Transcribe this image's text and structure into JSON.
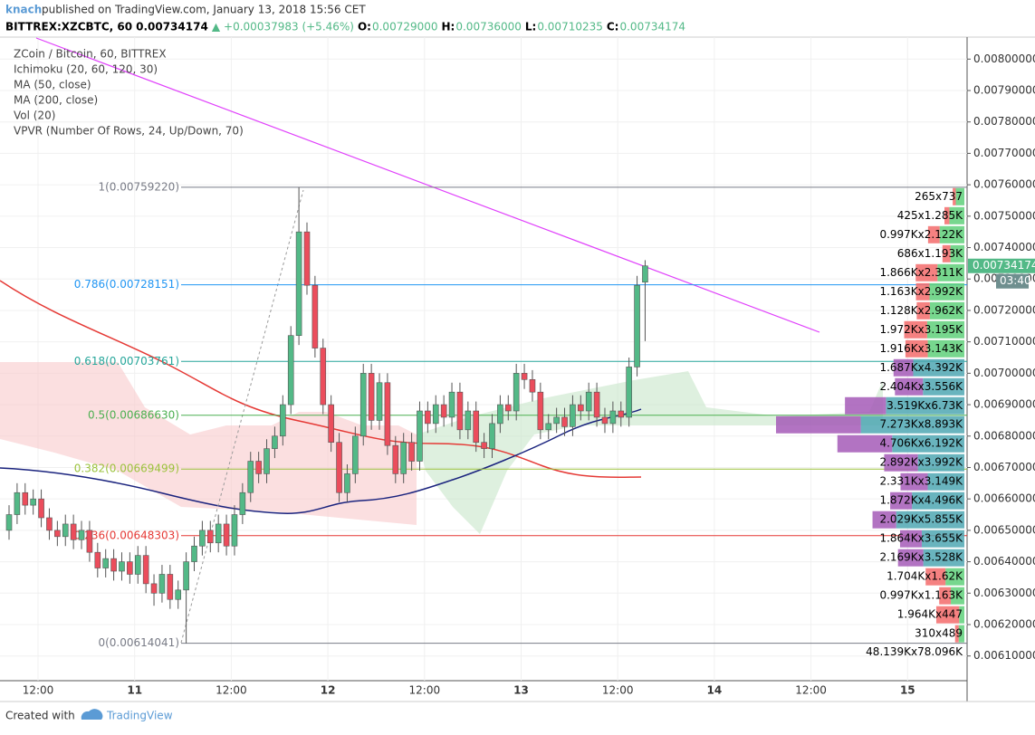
{
  "header": {
    "author": "knach",
    "published": "published on TradingView.com, January 13, 2018 15:56 CET",
    "symbol": "BITTREX:XZCBTC, 60",
    "last": "0.00734174",
    "arrow": "▲",
    "change": "+0.00037983 (+5.46%)",
    "o_label": "O:",
    "o": "0.00729000",
    "h_label": "H:",
    "h": "0.00736000",
    "l_label": "L:",
    "l": "0.00710235",
    "c_label": "C:",
    "c": "0.00734174"
  },
  "legend": [
    "ZCoin / Bitcoin, 60, BITTREX",
    "Ichimoku (20, 60, 120, 30)",
    "MA (50, close)",
    "MA (200, close)",
    "Vol (20)",
    "VPVR (Number Of Rows, 24, Up/Down, 70)"
  ],
  "countdown": "03:40",
  "footer": {
    "created": "Created with",
    "brand": "TradingView"
  },
  "chart_data": {
    "type": "candlestick",
    "up_color": "#53b987",
    "down_color": "#eb4d5c",
    "ylim": [
      0.00603,
      0.00807
    ],
    "yticks": [
      {
        "value": 0.0061,
        "label": "0.00610000"
      },
      {
        "value": 0.0062,
        "label": "0.00620000"
      },
      {
        "value": 0.0063,
        "label": "0.00630000"
      },
      {
        "value": 0.0064,
        "label": "0.00640000"
      },
      {
        "value": 0.0065,
        "label": "0.00650000"
      },
      {
        "value": 0.0066,
        "label": "0.00660000"
      },
      {
        "value": 0.0067,
        "label": "0.00670000"
      },
      {
        "value": 0.0068,
        "label": "0.00680000"
      },
      {
        "value": 0.0069,
        "label": "0.00690000"
      },
      {
        "value": 0.007,
        "label": "0.00700000"
      },
      {
        "value": 0.0071,
        "label": "0.00710000"
      },
      {
        "value": 0.0072,
        "label": "0.00720000"
      },
      {
        "value": 0.0073,
        "label": "0.00730000"
      },
      {
        "value": 0.0074,
        "label": "0.00740000"
      },
      {
        "value": 0.0075,
        "label": "0.00750000"
      },
      {
        "value": 0.0076,
        "label": "0.00760000"
      },
      {
        "value": 0.0077,
        "label": "0.00770000"
      },
      {
        "value": 0.0078,
        "label": "0.00780000"
      },
      {
        "value": 0.0079,
        "label": "0.00790000"
      },
      {
        "value": 0.008,
        "label": "0.00800000"
      }
    ],
    "xticks": [
      "12:00",
      "11",
      "12:00",
      "12",
      "12:00",
      "13",
      "12:00",
      "14",
      "12:00",
      "15"
    ],
    "last_price": {
      "value": 0.00734174,
      "label": "0.00734174",
      "color": "#53b987"
    },
    "open": [
      0.0065,
      0.00655,
      0.00662,
      0.00658,
      0.0066,
      0.00654,
      0.0065,
      0.00648,
      0.00652,
      0.00647,
      0.0065,
      0.00643,
      0.00638,
      0.00641,
      0.00637,
      0.0064,
      0.00636,
      0.00642,
      0.00633,
      0.0063,
      0.00636,
      0.00628,
      0.00631,
      0.0064,
      0.00645,
      0.0065,
      0.00646,
      0.00652,
      0.00645,
      0.00655,
      0.00662,
      0.00672,
      0.00668,
      0.00676,
      0.0068,
      0.0069,
      0.00712,
      0.00745,
      0.00728,
      0.00708,
      0.0069,
      0.00678,
      0.00662,
      0.00668,
      0.0068,
      0.007,
      0.00685,
      0.00697,
      0.00677,
      0.00668,
      0.00678,
      0.00672,
      0.00688,
      0.00684,
      0.0069,
      0.00686,
      0.00694,
      0.00682,
      0.00688,
      0.00678,
      0.00676,
      0.00684,
      0.0069,
      0.00688,
      0.007,
      0.00698,
      0.00694,
      0.00682,
      0.00684,
      0.00686,
      0.00683,
      0.0069,
      0.00688,
      0.00694,
      0.00686,
      0.00684,
      0.00688,
      0.00686,
      0.00702,
      0.00729
    ],
    "high": [
      0.00658,
      0.00665,
      0.00665,
      0.00663,
      0.00663,
      0.00657,
      0.00653,
      0.00655,
      0.00655,
      0.00653,
      0.00653,
      0.00646,
      0.00644,
      0.00644,
      0.00643,
      0.00643,
      0.00645,
      0.00645,
      0.00636,
      0.00639,
      0.00639,
      0.00634,
      0.00643,
      0.00648,
      0.00653,
      0.00653,
      0.00655,
      0.00655,
      0.00658,
      0.00665,
      0.00675,
      0.00675,
      0.00679,
      0.00683,
      0.00693,
      0.00715,
      0.0075922,
      0.00748,
      0.00731,
      0.00711,
      0.00693,
      0.00681,
      0.00671,
      0.00683,
      0.00703,
      0.00703,
      0.007,
      0.007,
      0.0068,
      0.00681,
      0.00681,
      0.00691,
      0.00691,
      0.00693,
      0.00693,
      0.00697,
      0.00697,
      0.00691,
      0.00691,
      0.00681,
      0.00687,
      0.00693,
      0.00693,
      0.00703,
      0.00703,
      0.00701,
      0.00697,
      0.00687,
      0.00689,
      0.00689,
      0.00693,
      0.00693,
      0.00697,
      0.00697,
      0.00689,
      0.00691,
      0.00691,
      0.00705,
      0.00731,
      0.00736
    ],
    "low": [
      0.00647,
      0.00652,
      0.00655,
      0.00655,
      0.00651,
      0.00647,
      0.00645,
      0.00645,
      0.00644,
      0.00644,
      0.0064,
      0.00635,
      0.00635,
      0.00634,
      0.00634,
      0.00633,
      0.00633,
      0.0063,
      0.00626,
      0.00627,
      0.00625,
      0.00625,
      0.00614041,
      0.00637,
      0.00642,
      0.00643,
      0.00643,
      0.00642,
      0.00642,
      0.00652,
      0.00659,
      0.00665,
      0.00665,
      0.00673,
      0.00677,
      0.00687,
      0.00709,
      0.00725,
      0.00705,
      0.00687,
      0.00675,
      0.00659,
      0.00659,
      0.00665,
      0.00677,
      0.00682,
      0.00682,
      0.00674,
      0.00665,
      0.00665,
      0.00669,
      0.00669,
      0.00681,
      0.00681,
      0.00683,
      0.00683,
      0.00679,
      0.00679,
      0.00675,
      0.00673,
      0.00673,
      0.00681,
      0.00685,
      0.00685,
      0.00695,
      0.00691,
      0.00679,
      0.00679,
      0.00681,
      0.0068,
      0.0068,
      0.00685,
      0.00685,
      0.00683,
      0.00681,
      0.00681,
      0.00683,
      0.00683,
      0.00699,
      0.00710235
    ],
    "close": [
      0.00655,
      0.00662,
      0.00658,
      0.0066,
      0.00654,
      0.0065,
      0.00648,
      0.00652,
      0.00647,
      0.0065,
      0.00643,
      0.00638,
      0.00641,
      0.00637,
      0.0064,
      0.00636,
      0.00642,
      0.00633,
      0.0063,
      0.00636,
      0.00628,
      0.00631,
      0.0064,
      0.00645,
      0.0065,
      0.00646,
      0.00652,
      0.00645,
      0.00655,
      0.00662,
      0.00672,
      0.00668,
      0.00676,
      0.0068,
      0.0069,
      0.00712,
      0.00745,
      0.00728,
      0.00708,
      0.0069,
      0.00678,
      0.00662,
      0.00668,
      0.0068,
      0.007,
      0.00685,
      0.00697,
      0.00677,
      0.00668,
      0.00678,
      0.00672,
      0.00688,
      0.00684,
      0.0069,
      0.00686,
      0.00694,
      0.00682,
      0.00688,
      0.00678,
      0.00676,
      0.00684,
      0.0069,
      0.00688,
      0.007,
      0.00698,
      0.00694,
      0.00682,
      0.00684,
      0.00686,
      0.00683,
      0.0069,
      0.00688,
      0.00694,
      0.00686,
      0.00684,
      0.00688,
      0.00686,
      0.00702,
      0.00728,
      0.00734174
    ],
    "fib_levels": [
      {
        "label": "1(0.00759220)",
        "value": 0.0075922,
        "color": "#787b86"
      },
      {
        "label": "0.786(0.00728151)",
        "value": 0.00728151,
        "color": "#2196f3"
      },
      {
        "label": "0.618(0.00703761)",
        "value": 0.00703761,
        "color": "#26a69a"
      },
      {
        "label": "0.5(0.00686630)",
        "value": 0.0068663,
        "color": "#4caf50"
      },
      {
        "label": "0.382(0.00669499)",
        "value": 0.00669499,
        "color": "#9bc23c"
      },
      {
        "label": "0.236(0.00648303)",
        "value": 0.00648303,
        "color": "#e53935"
      },
      {
        "label": "0(0.00614041)",
        "value": 0.00614041,
        "color": "#787b86"
      }
    ],
    "vpvr": {
      "colors": {
        "up": "#5fd07a",
        "down": "#f36b6b",
        "up_va": "#4fa7b3",
        "down_va": "#a55bb7"
      },
      "rows": [
        {
          "label": "265x737",
          "a": 265,
          "b": 737,
          "va": false
        },
        {
          "label": "425x1.285K",
          "a": 425,
          "b": 1285,
          "va": false
        },
        {
          "label": "0.997Kx2.122K",
          "a": 997,
          "b": 2122,
          "va": false
        },
        {
          "label": "686x1.193K",
          "a": 686,
          "b": 1193,
          "va": false
        },
        {
          "label": "1.866Kx2.311K",
          "a": 1866,
          "b": 2311,
          "va": false
        },
        {
          "label": "1.163Kx2.992K",
          "a": 1163,
          "b": 2992,
          "va": false
        },
        {
          "label": "1.128Kx2.962K",
          "a": 1128,
          "b": 2962,
          "va": false
        },
        {
          "label": "1.972Kx3.195K",
          "a": 1972,
          "b": 3195,
          "va": false
        },
        {
          "label": "1.916Kx3.143K",
          "a": 1916,
          "b": 3143,
          "va": false
        },
        {
          "label": "1.687Kx4.392K",
          "a": 1687,
          "b": 4392,
          "va": true
        },
        {
          "label": "2.404Kx3.556K",
          "a": 2404,
          "b": 3556,
          "va": true
        },
        {
          "label": "3.519Kx6.73K",
          "a": 3519,
          "b": 6730,
          "va": true
        },
        {
          "label": "7.273Kx8.893K",
          "a": 7273,
          "b": 8893,
          "va": true
        },
        {
          "label": "4.706Kx6.192K",
          "a": 4706,
          "b": 6192,
          "va": true
        },
        {
          "label": "2.892Kx3.992K",
          "a": 2892,
          "b": 3992,
          "va": true
        },
        {
          "label": "2.331Kx3.149K",
          "a": 2331,
          "b": 3149,
          "va": true
        },
        {
          "label": "1.872Kx4.496K",
          "a": 1872,
          "b": 4496,
          "va": true
        },
        {
          "label": "2.029Kx5.855K",
          "a": 2029,
          "b": 5855,
          "va": true
        },
        {
          "label": "1.864Kx3.655K",
          "a": 1864,
          "b": 3655,
          "va": true
        },
        {
          "label": "2.169Kx3.528K",
          "a": 2169,
          "b": 3528,
          "va": true
        },
        {
          "label": "1.704Kx1.62K",
          "a": 1704,
          "b": 1620,
          "va": false
        },
        {
          "label": "0.997Kx1.163K",
          "a": 997,
          "b": 1163,
          "va": false
        },
        {
          "label": "1.964Kx447",
          "a": 1964,
          "b": 447,
          "va": false
        },
        {
          "label": "310x489",
          "a": 310,
          "b": 489,
          "va": false
        }
      ],
      "total": {
        "label": "48.139Kx78.096K",
        "a": 48139,
        "b": 78096
      }
    }
  }
}
